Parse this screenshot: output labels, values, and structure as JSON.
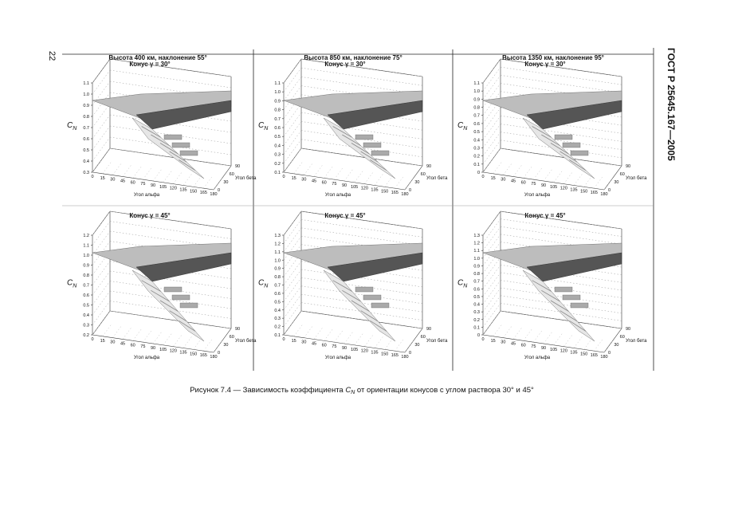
{
  "page_number": "22",
  "running_head": "ГОСТ Р 25645.167—2005",
  "column_headers": [
    "Высота 400 км, наклонение 55°",
    "Высота 850 км, наклонение 75°",
    "Высота 1350 км, наклонение 95°"
  ],
  "panels": [
    {
      "title": "Конус γ = 30°",
      "z_label": {
        "main": "C",
        "sub": "N"
      },
      "z_ticks": [
        "0.3",
        "0.4",
        "0.5",
        "0.6",
        "0.7",
        "0.8",
        "0.9",
        "1.0",
        "1.1"
      ],
      "x_ticks": [
        "0",
        "15",
        "30",
        "45",
        "60",
        "75",
        "90",
        "105",
        "120",
        "135",
        "150",
        "165",
        "180"
      ],
      "y_ticks": [
        "0",
        "30",
        "60",
        "90"
      ],
      "x_label": "Угол альфа",
      "y_label": "Угол бета"
    },
    {
      "title": "Конус γ = 30°",
      "z_label": {
        "main": "C",
        "sub": "N"
      },
      "z_ticks": [
        "0.1",
        "0.2",
        "0.3",
        "0.4",
        "0.5",
        "0.6",
        "0.7",
        "0.8",
        "0.9",
        "1.0",
        "1.1"
      ],
      "x_ticks": [
        "0",
        "15",
        "30",
        "45",
        "60",
        "75",
        "90",
        "105",
        "120",
        "135",
        "150",
        "165",
        "180"
      ],
      "y_ticks": [
        "0",
        "30",
        "60",
        "90"
      ],
      "x_label": "Угол альфа",
      "y_label": "Угол бета"
    },
    {
      "title": "Конус γ = 30°",
      "z_label": {
        "main": "C",
        "sub": "N"
      },
      "z_ticks": [
        "0",
        "0.1",
        "0.2",
        "0.3",
        "0.4",
        "0.5",
        "0.6",
        "0.7",
        "0.8",
        "0.9",
        "1.0",
        "1.1"
      ],
      "x_ticks": [
        "0",
        "15",
        "30",
        "45",
        "60",
        "75",
        "90",
        "105",
        "120",
        "135",
        "150",
        "165",
        "180"
      ],
      "y_ticks": [
        "0",
        "30",
        "60",
        "90"
      ],
      "x_label": "Угол альфа",
      "y_label": "Угол бета"
    },
    {
      "title": "Конус γ = 45°",
      "z_label": {
        "main": "C",
        "sub": "N"
      },
      "z_ticks": [
        "0.2",
        "0.3",
        "0.4",
        "0.5",
        "0.6",
        "0.7",
        "0.8",
        "0.9",
        "1.0",
        "1.1",
        "1.2"
      ],
      "x_ticks": [
        "0",
        "15",
        "30",
        "45",
        "60",
        "75",
        "90",
        "105",
        "120",
        "135",
        "150",
        "165",
        "180"
      ],
      "y_ticks": [
        "0",
        "30",
        "60",
        "90"
      ],
      "x_label": "Угол альфа",
      "y_label": "Угол бета"
    },
    {
      "title": "Конус γ = 45°",
      "z_label": {
        "main": "C",
        "sub": "N"
      },
      "z_ticks": [
        "0.1",
        "0.2",
        "0.3",
        "0.4",
        "0.5",
        "0.6",
        "0.7",
        "0.8",
        "0.9",
        "1.0",
        "1.1",
        "1.2",
        "1.3"
      ],
      "x_ticks": [
        "0",
        "15",
        "30",
        "45",
        "60",
        "75",
        "90",
        "105",
        "120",
        "135",
        "150",
        "165",
        "180"
      ],
      "y_ticks": [
        "0",
        "30",
        "60",
        "90"
      ],
      "x_label": "Угол альфа",
      "y_label": "Угол бета"
    },
    {
      "title": "Конус γ = 45°",
      "z_label": {
        "main": "C",
        "sub": "N"
      },
      "z_ticks": [
        "0",
        "0.1",
        "0.2",
        "0.3",
        "0.4",
        "0.5",
        "0.6",
        "0.7",
        "0.8",
        "0.9",
        "1.0",
        "1.1",
        "1.2",
        "1.3"
      ],
      "x_ticks": [
        "0",
        "15",
        "30",
        "45",
        "60",
        "75",
        "90",
        "105",
        "120",
        "135",
        "150",
        "165",
        "180"
      ],
      "y_ticks": [
        "0",
        "30",
        "60",
        "90"
      ],
      "x_label": "Угол альфа",
      "y_label": "Угол бета"
    }
  ],
  "caption": {
    "before": "Рисунок 7.4 — Зависимость коэффициента ",
    "symbol": "C",
    "subscript": "N",
    "after": " от ориентации  конусов с углом раствора 30° и 45°"
  }
}
